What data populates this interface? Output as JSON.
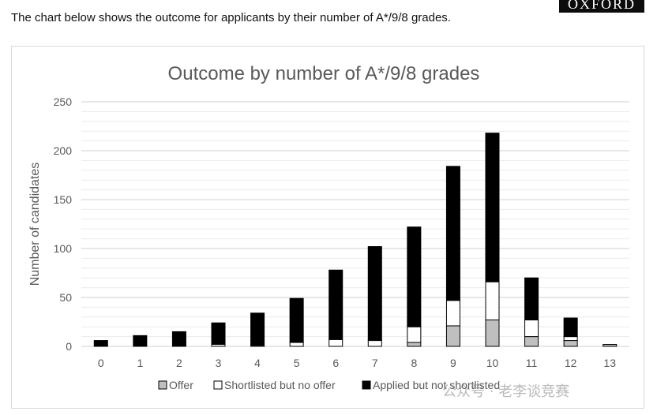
{
  "intro_text": "The chart below shows the outcome for applicants by their number of A*/9/8 grades.",
  "logo_text": "OXFORD",
  "watermark_text": "公众号 · 老李谈竞赛",
  "colors": {
    "offer": "#bfbfbf",
    "shortlisted": "#ffffff",
    "applied": "#000000",
    "grid": "#d9d9d9",
    "axis_text": "#595959"
  },
  "chart_data": {
    "type": "bar",
    "stacked": true,
    "title": "Outcome by number of A*/9/8 grades",
    "xlabel": "",
    "ylabel": "Number of candidates",
    "ylim": [
      0,
      250
    ],
    "yticks": [
      0,
      50,
      100,
      150,
      200,
      250
    ],
    "grid": true,
    "legend_position": "bottom",
    "categories": [
      "0",
      "1",
      "2",
      "3",
      "4",
      "5",
      "6",
      "7",
      "8",
      "9",
      "10",
      "11",
      "12",
      "13"
    ],
    "series": [
      {
        "name": "Offer",
        "values": [
          0,
          0,
          0,
          0,
          0,
          0,
          0,
          0,
          4,
          21,
          27,
          10,
          6,
          2
        ]
      },
      {
        "name": "Shortlisted but no offer",
        "values": [
          0,
          0,
          0,
          2,
          1,
          4,
          7,
          6,
          16,
          26,
          39,
          17,
          4,
          0
        ]
      },
      {
        "name": "Applied but not shortlisted",
        "values": [
          6,
          11,
          15,
          22,
          33,
          45,
          71,
          96,
          102,
          137,
          152,
          43,
          19,
          0
        ]
      }
    ]
  }
}
